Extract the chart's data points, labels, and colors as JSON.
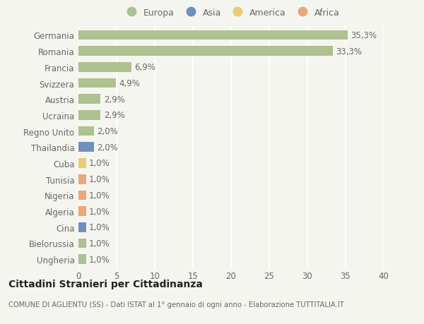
{
  "countries": [
    "Germania",
    "Romania",
    "Francia",
    "Svizzera",
    "Austria",
    "Ucraina",
    "Regno Unito",
    "Thailandia",
    "Cuba",
    "Tunisia",
    "Nigeria",
    "Algeria",
    "Cina",
    "Bielorussia",
    "Ungheria"
  ],
  "values": [
    35.3,
    33.3,
    6.9,
    4.9,
    2.9,
    2.9,
    2.0,
    2.0,
    1.0,
    1.0,
    1.0,
    1.0,
    1.0,
    1.0,
    1.0
  ],
  "labels": [
    "35,3%",
    "33,3%",
    "6,9%",
    "4,9%",
    "2,9%",
    "2,9%",
    "2,0%",
    "2,0%",
    "1,0%",
    "1,0%",
    "1,0%",
    "1,0%",
    "1,0%",
    "1,0%",
    "1,0%"
  ],
  "continents": [
    "Europa",
    "Europa",
    "Europa",
    "Europa",
    "Europa",
    "Europa",
    "Europa",
    "Asia",
    "America",
    "Africa",
    "Africa",
    "Africa",
    "Asia",
    "Europa",
    "Europa"
  ],
  "colors": {
    "Europa": "#adc191",
    "Asia": "#6f8fbf",
    "America": "#e8cb74",
    "Africa": "#e8a87a"
  },
  "legend_order": [
    "Europa",
    "Asia",
    "America",
    "Africa"
  ],
  "xlim": [
    0,
    40
  ],
  "xticks": [
    0,
    5,
    10,
    15,
    20,
    25,
    30,
    35,
    40
  ],
  "title": "Cittadini Stranieri per Cittadinanza",
  "subtitle": "COMUNE DI AGLIENTU (SS) - Dati ISTAT al 1° gennaio di ogni anno - Elaborazione TUTTITALIA.IT",
  "bg_color": "#f5f5f0",
  "bar_height": 0.6,
  "label_fontsize": 8.5,
  "tick_fontsize": 8.5
}
